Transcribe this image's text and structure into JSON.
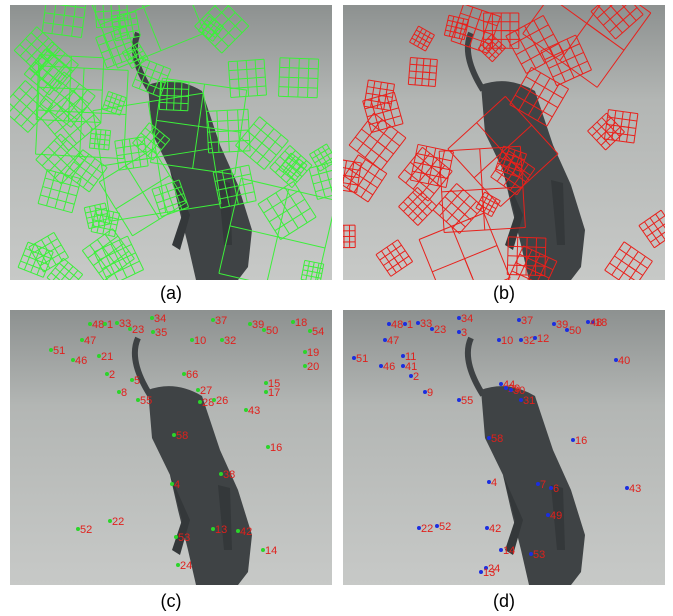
{
  "panels": [
    {
      "caption": "(a)"
    },
    {
      "caption": "(b)"
    },
    {
      "caption": "(c)",
      "labels": [
        "48",
        "1",
        "33",
        "23",
        "34",
        "35",
        "37",
        "39",
        "50",
        "18",
        "54",
        "47",
        "10",
        "32",
        "51",
        "46",
        "21",
        "19",
        "20",
        "2",
        "66",
        "15",
        "17",
        "5",
        "8",
        "27",
        "55",
        "28",
        "26",
        "43",
        "16",
        "58",
        "38",
        "4",
        "52",
        "22",
        "53",
        "42",
        "14",
        "24",
        "13"
      ]
    },
    {
      "caption": "(d)",
      "labels": [
        "48",
        "1",
        "33",
        "23",
        "34",
        "3",
        "37",
        "39",
        "50",
        "18",
        "32",
        "47",
        "10",
        "12",
        "51",
        "46",
        "11",
        "41",
        "2",
        "40",
        "9",
        "44",
        "7",
        "6",
        "29",
        "55",
        "30",
        "31",
        "43",
        "16",
        "58",
        "49",
        "4",
        "52",
        "22",
        "53",
        "42",
        "14",
        "24",
        "13",
        "48"
      ]
    }
  ]
}
